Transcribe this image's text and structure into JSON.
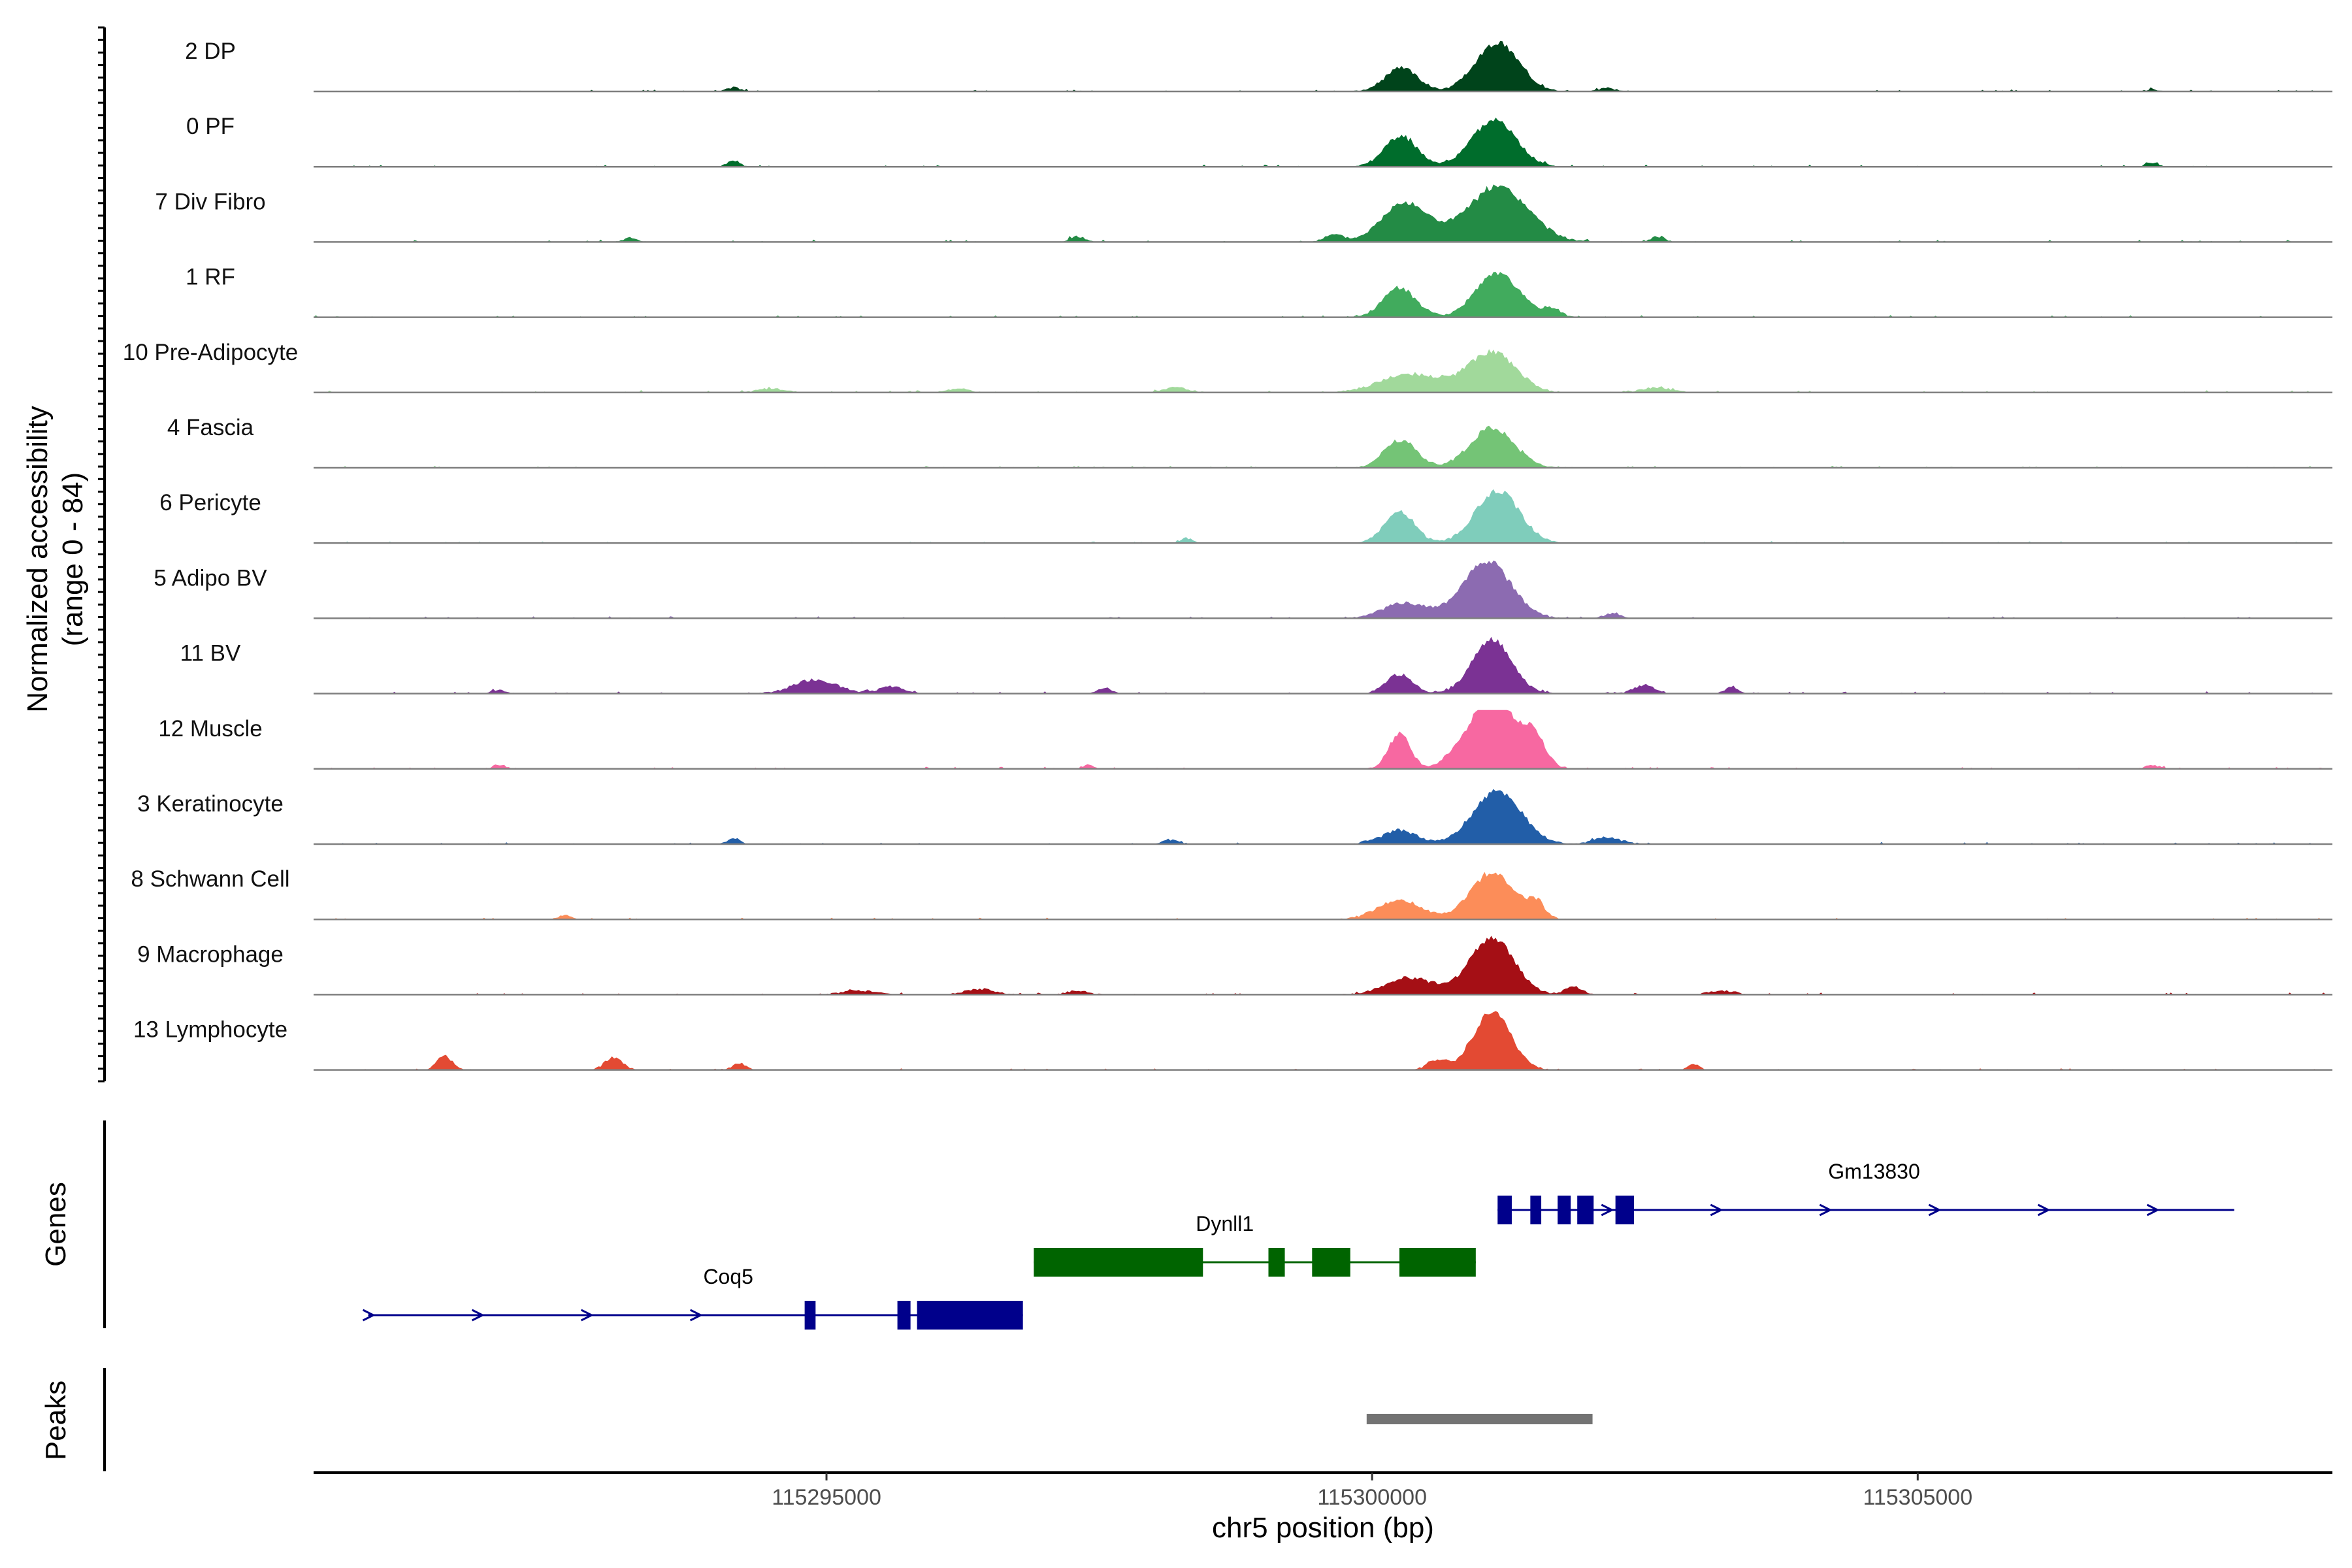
{
  "chart_data": {
    "type": "area",
    "title": "",
    "ylabel_line1": "Normalized accessibility",
    "ylabel_line2": "(range 0 - 84)",
    "ylim": [
      0,
      84
    ],
    "xlabel": "chr5 position (bp)",
    "xlim": [
      115290300,
      115308800
    ],
    "x_ticks": [
      115295000,
      115300000,
      115305000
    ],
    "x_tick_labels": [
      "115295000",
      "115300000",
      "115305000"
    ],
    "genes_title": "Genes",
    "peaks_title": "Peaks",
    "tracks": [
      {
        "name": "2 DP",
        "color": "#00441b",
        "peaks": [
          [
            115300270,
            34,
            150
          ],
          [
            115301150,
            70,
            200
          ],
          [
            115294150,
            6,
            60
          ],
          [
            115302150,
            5,
            80
          ],
          [
            115307150,
            3,
            60
          ]
        ],
        "noise": 1.2,
        "seed": 11
      },
      {
        "name": "0 PF",
        "color": "#006d2c",
        "peaks": [
          [
            115300260,
            44,
            150
          ],
          [
            115301120,
            68,
            200
          ],
          [
            115294150,
            8,
            60
          ],
          [
            115307150,
            6,
            60
          ]
        ],
        "noise": 1.3,
        "seed": 12
      },
      {
        "name": "7 Div Fibro",
        "color": "#238b45",
        "peaks": [
          [
            115300300,
            56,
            210
          ],
          [
            115301150,
            78,
            280
          ],
          [
            115293200,
            6,
            60
          ],
          [
            115297300,
            8,
            70
          ],
          [
            115299650,
            10,
            90
          ],
          [
            115302620,
            8,
            60
          ]
        ],
        "noise": 1.6,
        "seed": 13
      },
      {
        "name": "1 RF",
        "color": "#41ab5d",
        "peaks": [
          [
            115300250,
            42,
            150
          ],
          [
            115301150,
            62,
            200
          ],
          [
            115301650,
            12,
            80
          ]
        ],
        "noise": 1.4,
        "seed": 14
      },
      {
        "name": "10 Pre-Adipocyte",
        "color": "#a1d99b",
        "peaks": [
          [
            115300350,
            26,
            280
          ],
          [
            115301100,
            58,
            220
          ],
          [
            115294500,
            6,
            120
          ],
          [
            115296200,
            6,
            100
          ],
          [
            115298200,
            7,
            120
          ],
          [
            115302600,
            7,
            140
          ]
        ],
        "noise": 1.6,
        "seed": 15
      },
      {
        "name": "4 Fascia",
        "color": "#74c476",
        "peaks": [
          [
            115300260,
            40,
            150
          ],
          [
            115301100,
            58,
            200
          ]
        ],
        "noise": 1.2,
        "seed": 16
      },
      {
        "name": "6 Pericyte",
        "color": "#7fcdbb",
        "peaks": [
          [
            115300250,
            44,
            140
          ],
          [
            115301150,
            75,
            200
          ],
          [
            115298300,
            7,
            50
          ]
        ],
        "noise": 1.2,
        "seed": 17
      },
      {
        "name": "5 Adipo BV",
        "color": "#8c6bb1",
        "peaks": [
          [
            115300300,
            22,
            200
          ],
          [
            115301050,
            82,
            220
          ],
          [
            115302200,
            7,
            80
          ]
        ],
        "noise": 1.3,
        "seed": 18
      },
      {
        "name": "11 BV",
        "color": "#7b3294",
        "peaks": [
          [
            115300250,
            28,
            120
          ],
          [
            115301100,
            78,
            180
          ],
          [
            115294900,
            20,
            200
          ],
          [
            115295600,
            10,
            120
          ],
          [
            115297550,
            8,
            60
          ],
          [
            115302500,
            12,
            100
          ],
          [
            115303300,
            10,
            60
          ],
          [
            115292000,
            6,
            60
          ]
        ],
        "noise": 1.5,
        "seed": 19
      },
      {
        "name": "12 Muscle",
        "color": "#f768a1",
        "peaks": [
          [
            115300250,
            50,
            100
          ],
          [
            115300950,
            60,
            180
          ],
          [
            115301150,
            84,
            120
          ],
          [
            115301450,
            60,
            120
          ],
          [
            115292000,
            6,
            60
          ],
          [
            115307150,
            6,
            60
          ],
          [
            115297400,
            5,
            50
          ]
        ],
        "noise": 1.4,
        "seed": 20
      },
      {
        "name": "3 Keratinocyte",
        "color": "#225ea8",
        "peaks": [
          [
            115300250,
            20,
            160
          ],
          [
            115301150,
            76,
            220
          ],
          [
            115302150,
            10,
            120
          ],
          [
            115298150,
            6,
            80
          ],
          [
            115294150,
            7,
            60
          ]
        ],
        "noise": 1.3,
        "seed": 21
      },
      {
        "name": "8 Schwann Cell",
        "color": "#fc8d59",
        "peaks": [
          [
            115300250,
            28,
            200
          ],
          [
            115301100,
            66,
            200
          ],
          [
            115301500,
            22,
            80
          ],
          [
            115292600,
            6,
            60
          ]
        ],
        "noise": 1.3,
        "seed": 22
      },
      {
        "name": "9 Macrophage",
        "color": "#a50f15",
        "peaks": [
          [
            115300350,
            24,
            220
          ],
          [
            115301100,
            82,
            200
          ],
          [
            115301850,
            12,
            80
          ],
          [
            115295300,
            6,
            160
          ],
          [
            115296400,
            8,
            140
          ],
          [
            115297300,
            6,
            100
          ],
          [
            115303200,
            6,
            120
          ]
        ],
        "noise": 1.4,
        "seed": 23
      },
      {
        "name": "13 Lymphocyte",
        "color": "#e34a33",
        "peaks": [
          [
            115301100,
            84,
            170
          ],
          [
            115300600,
            14,
            90
          ],
          [
            115291500,
            20,
            70
          ],
          [
            115293050,
            18,
            80
          ],
          [
            115294200,
            10,
            60
          ],
          [
            115302950,
            8,
            50
          ]
        ],
        "noise": 1.0,
        "seed": 24
      }
    ],
    "genes": [
      {
        "name": "Gm13830",
        "strand": "+",
        "color": "#00008b",
        "start": 115301150,
        "end": 115307900,
        "exons": [
          [
            115301150,
            115301280
          ],
          [
            115301450,
            115301550
          ],
          [
            115301700,
            115301820
          ],
          [
            115301880,
            115302030
          ],
          [
            115302230,
            115302400
          ]
        ]
      },
      {
        "name": "Dynll1",
        "strand": "-",
        "color": "#006400",
        "start": 115296900,
        "end": 115300950,
        "exons": [
          [
            115296900,
            115298450
          ],
          [
            115299050,
            115299200
          ],
          [
            115299450,
            115299800
          ],
          [
            115300250,
            115300950
          ]
        ]
      },
      {
        "name": "Coq5",
        "strand": "+",
        "color": "#00008b",
        "start": 115290800,
        "end": 115296800,
        "exons": [
          [
            115294800,
            115294900
          ],
          [
            115295650,
            115295770
          ],
          [
            115295830,
            115296800
          ]
        ]
      }
    ],
    "peak_regions": [
      {
        "start": 115299950,
        "end": 115302020,
        "color": "#737373"
      }
    ]
  }
}
